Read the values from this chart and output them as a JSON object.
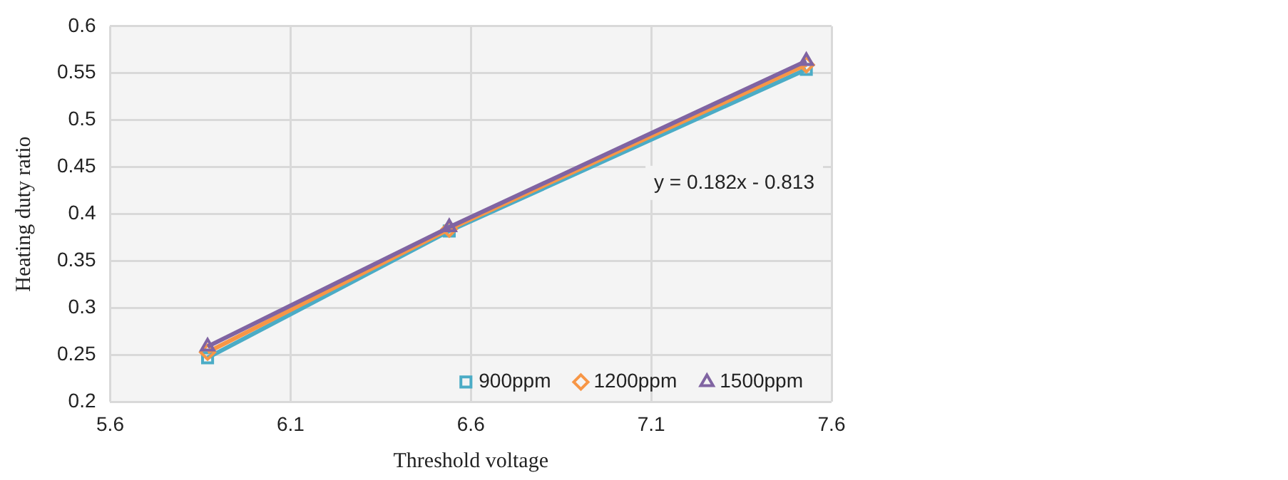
{
  "chart_data": {
    "type": "line",
    "xlabel": "Threshold voltage",
    "ylabel": "Heating duty ratio",
    "x": [
      5.87,
      6.54,
      7.53
    ],
    "series": [
      {
        "name": "900ppm",
        "color": "#4bacc6",
        "marker": "square",
        "values": [
          0.247,
          0.382,
          0.554
        ]
      },
      {
        "name": "1200ppm",
        "color": "#f79646",
        "marker": "diamond",
        "values": [
          0.253,
          0.384,
          0.559
        ]
      },
      {
        "name": "1500ppm",
        "color": "#8064a2",
        "marker": "triangle",
        "values": [
          0.259,
          0.386,
          0.563
        ]
      }
    ],
    "xlim": [
      5.6,
      7.6
    ],
    "xticks": [
      5.6,
      6.1,
      6.6,
      7.1,
      7.6
    ],
    "ylim": [
      0.2,
      0.6
    ],
    "yticks": [
      0.2,
      0.25,
      0.3,
      0.35,
      0.4,
      0.45,
      0.5,
      0.55,
      0.6
    ],
    "annotations": [
      "y = 0.182x - 0.813"
    ],
    "grid": true,
    "legend": "bottom right",
    "line_style": "solid"
  }
}
